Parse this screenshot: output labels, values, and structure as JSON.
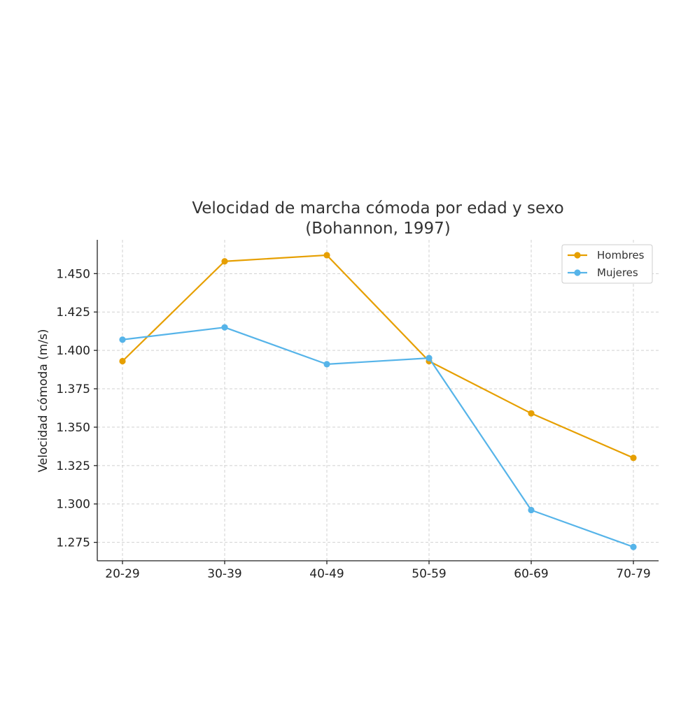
{
  "chart_data": {
    "type": "line",
    "title": [
      "Velocidad de marcha cómoda por edad y sexo",
      "(Bohannon, 1997)"
    ],
    "xlabel": "",
    "ylabel": "Velocidad cómoda (m/s)",
    "categories": [
      "20-29",
      "30-39",
      "40-49",
      "50-59",
      "60-69",
      "70-79"
    ],
    "ylim": [
      1.263,
      1.472
    ],
    "yticks": [
      1.275,
      1.3,
      1.325,
      1.35,
      1.375,
      1.4,
      1.425,
      1.45
    ],
    "ytick_labels": [
      "1.275",
      "1.300",
      "1.325",
      "1.350",
      "1.375",
      "1.400",
      "1.425",
      "1.450"
    ],
    "grid": true,
    "legend_position": "top-right",
    "series": [
      {
        "name": "Hombres",
        "color": "#E69F00",
        "values": [
          1.393,
          1.458,
          1.462,
          1.393,
          1.359,
          1.33
        ]
      },
      {
        "name": "Mujeres",
        "color": "#56B4E9",
        "values": [
          1.407,
          1.415,
          1.391,
          1.395,
          1.296,
          1.272
        ]
      }
    ]
  }
}
